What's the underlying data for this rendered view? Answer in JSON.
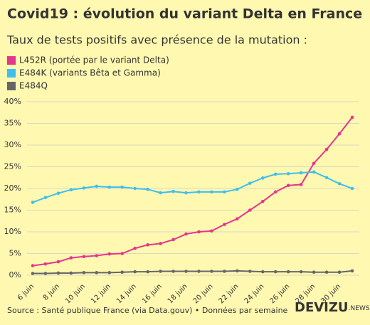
{
  "chart_data": {
    "type": "line",
    "title": "Covid19 : évolution du variant Delta en France",
    "subtitle": "Taux de tests positifs avec présence de la mutation :",
    "categories": [
      "6 juin",
      null,
      "8 juin",
      null,
      "10 juin",
      null,
      "12 juin",
      null,
      "14 juin",
      null,
      "16 juin",
      null,
      "18 juin",
      null,
      "20 juin",
      null,
      "22 juin",
      null,
      "24 juin",
      null,
      "26 juin",
      null,
      "28 juin",
      null,
      "30 juin",
      null
    ],
    "series": [
      {
        "name": "L452R (portée par le variant Delta)",
        "color": "#e5358c",
        "values": [
          2.2,
          2.6,
          3.1,
          4.0,
          4.3,
          4.5,
          4.9,
          5.0,
          6.2,
          7.0,
          7.3,
          8.2,
          9.5,
          10.0,
          10.2,
          11.7,
          13.0,
          15.0,
          17.0,
          19.2,
          20.7,
          20.9,
          25.8,
          29.0,
          32.6,
          36.4
        ]
      },
      {
        "name": "E484K (variants Bêta et Gamma)",
        "color": "#3dbff0",
        "values": [
          16.8,
          17.9,
          18.9,
          19.7,
          20.1,
          20.5,
          20.3,
          20.3,
          20.0,
          19.8,
          19.0,
          19.3,
          19.0,
          19.2,
          19.2,
          19.2,
          19.8,
          21.2,
          22.4,
          23.3,
          23.4,
          23.6,
          23.8,
          22.5,
          21.1,
          20.0
        ]
      },
      {
        "name": "E484Q",
        "color": "#666666",
        "values": [
          0.4,
          0.4,
          0.5,
          0.5,
          0.6,
          0.6,
          0.6,
          0.7,
          0.8,
          0.8,
          0.9,
          0.9,
          0.9,
          0.9,
          0.9,
          0.9,
          1.0,
          0.9,
          0.8,
          0.8,
          0.8,
          0.8,
          0.7,
          0.7,
          0.7,
          1.0
        ]
      }
    ],
    "ylim": [
      0,
      40
    ],
    "yticks": [
      {
        "value": 0,
        "label": "0%"
      },
      {
        "value": 5,
        "label": "5%"
      },
      {
        "value": 10,
        "label": "10%"
      },
      {
        "value": 15,
        "label": "15%"
      },
      {
        "value": 20,
        "label": "20%"
      },
      {
        "value": 25,
        "label": "25%"
      },
      {
        "value": 30,
        "label": "30%"
      },
      {
        "value": 35,
        "label": "35%"
      },
      {
        "value": 40,
        "label": "40%"
      }
    ],
    "grid": true,
    "source": "Source : Santé publique France (via Data.gouv) • Données par semaine",
    "logo": "DEVIZU",
    "logo_suffix": ".NEWS"
  }
}
